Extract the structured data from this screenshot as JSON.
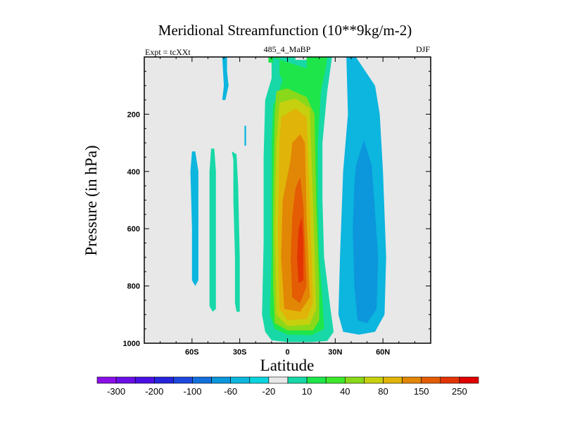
{
  "chart_data": {
    "type": "contour",
    "title": "Meridional Streamfunction (10**9kg/m-2)",
    "left_string": "Expt = tcXXt",
    "center_string": "485_4_MaBP",
    "right_string": "DJF",
    "xlabel": "Latitude",
    "ylabel": "Pressure (in hPa)",
    "xlim": [
      -90,
      90
    ],
    "ylim": [
      1000,
      0
    ],
    "x_ticks": [
      {
        "value": -60,
        "label": "60S"
      },
      {
        "value": -30,
        "label": "30S"
      },
      {
        "value": 0,
        "label": "0"
      },
      {
        "value": 30,
        "label": "30N"
      },
      {
        "value": 60,
        "label": "60N"
      }
    ],
    "y_ticks": [
      {
        "value": 200,
        "label": "200"
      },
      {
        "value": 400,
        "label": "400"
      },
      {
        "value": 600,
        "label": "600"
      },
      {
        "value": 800,
        "label": "800"
      },
      {
        "value": 1000,
        "label": "1000"
      }
    ],
    "colorbar": {
      "colors": [
        "#8a0ee8",
        "#6a0ee6",
        "#4a10e4",
        "#2624dc",
        "#1c48dc",
        "#1470dc",
        "#0c96dc",
        "#0cb6de",
        "#0ad4de",
        "#e8e8e8",
        "#18d8a8",
        "#1ee64a",
        "#3ee82a",
        "#8ad81a",
        "#c6d00e",
        "#e0b408",
        "#e28606",
        "#e45c04",
        "#e43402",
        "#e00000"
      ],
      "tick_labels": [
        "-300",
        "-200",
        "-100",
        "-60",
        "-20",
        "10",
        "40",
        "80",
        "150",
        "250"
      ]
    },
    "contours": [
      {
        "level": 10,
        "color": "#18d8a8",
        "polygons": [
          [
            [
              -90,
              1000
            ],
            [
              -90,
              1000
            ]
          ],
          [
            [
              -16,
              0
            ],
            [
              -10,
              0
            ],
            [
              -10,
              75
            ],
            [
              -14,
              150
            ],
            [
              -15,
              350
            ],
            [
              -15,
              650
            ],
            [
              -16,
              900
            ],
            [
              -14,
              960
            ],
            [
              -10,
              990
            ],
            [
              0,
              996
            ],
            [
              15,
              996
            ],
            [
              25,
              992
            ],
            [
              29,
              960
            ],
            [
              27,
              880
            ],
            [
              23,
              700
            ],
            [
              22,
              500
            ],
            [
              22,
              300
            ],
            [
              25,
              120
            ],
            [
              27,
              40
            ],
            [
              28,
              0
            ],
            [
              12,
              0
            ],
            [
              12,
              10
            ],
            [
              5,
              10
            ],
            [
              5,
              0
            ],
            [
              -16,
              0
            ]
          ],
          [
            [
              -35,
              330
            ],
            [
              -34,
              360
            ],
            [
              -34,
              500
            ],
            [
              -33,
              700
            ],
            [
              -33,
              860
            ],
            [
              -32,
              890
            ],
            [
              -30,
              890
            ],
            [
              -30,
              700
            ],
            [
              -31,
              450
            ],
            [
              -32,
              340
            ],
            [
              -35,
              330
            ]
          ],
          [
            [
              -20,
              430
            ],
            [
              -20,
              430
            ]
          ]
        ]
      },
      {
        "level": 40,
        "color": "#1ee64a",
        "polygons": [
          [
            [
              -10,
              0
            ],
            [
              -5,
              0
            ],
            [
              -5,
              60
            ],
            [
              -3,
              80
            ],
            [
              -6,
              130
            ],
            [
              -9,
              170
            ],
            [
              -10,
              300
            ],
            [
              -10,
              700
            ],
            [
              -11,
              900
            ],
            [
              -8,
              950
            ],
            [
              0,
              970
            ],
            [
              15,
              972
            ],
            [
              23,
              950
            ],
            [
              22,
              850
            ],
            [
              20,
              700
            ],
            [
              19,
              500
            ],
            [
              19,
              300
            ],
            [
              21,
              120
            ],
            [
              24,
              40
            ],
            [
              25,
              0
            ],
            [
              12,
              0
            ],
            [
              12,
              20
            ],
            [
              12,
              40
            ],
            [
              -10,
              0
            ]
          ]
        ]
      },
      {
        "level": 80,
        "color": "#8ad81a",
        "polygons": [
          [
            [
              -7,
              120
            ],
            [
              0,
              110
            ],
            [
              12,
              140
            ],
            [
              17,
              200
            ],
            [
              18,
              500
            ],
            [
              20,
              800
            ],
            [
              20,
              920
            ],
            [
              16,
              955
            ],
            [
              0,
              955
            ],
            [
              -8,
              930
            ],
            [
              -9,
              800
            ],
            [
              -9,
              500
            ],
            [
              -8,
              200
            ],
            [
              -7,
              120
            ]
          ]
        ]
      },
      {
        "level": 150,
        "color": "#c6d00e",
        "polygons": [
          [
            [
              -5,
              160
            ],
            [
              5,
              145
            ],
            [
              14,
              180
            ],
            [
              16,
              500
            ],
            [
              18,
              880
            ],
            [
              14,
              935
            ],
            [
              0,
              940
            ],
            [
              -7,
              900
            ],
            [
              -8,
              600
            ],
            [
              -7,
              300
            ],
            [
              -5,
              160
            ]
          ]
        ]
      },
      {
        "level": 200,
        "color": "#e0b408",
        "polygons": [
          [
            [
              -4,
              210
            ],
            [
              5,
              180
            ],
            [
              12,
              210
            ],
            [
              14,
              500
            ],
            [
              16,
              860
            ],
            [
              12,
              915
            ],
            [
              0,
              920
            ],
            [
              -5,
              880
            ],
            [
              -6,
              600
            ],
            [
              -5,
              300
            ],
            [
              -4,
              210
            ]
          ]
        ]
      },
      {
        "level": 250,
        "color": "#e28606",
        "polygons": [
          [
            [
              3,
              300
            ],
            [
              8,
              270
            ],
            [
              11,
              300
            ],
            [
              12,
              550
            ],
            [
              14,
              840
            ],
            [
              8,
              890
            ],
            [
              -2,
              880
            ],
            [
              -4,
              700
            ],
            [
              -3,
              500
            ],
            [
              2,
              360
            ],
            [
              3,
              300
            ]
          ]
        ]
      },
      {
        "level": 300,
        "color": "#e45c04",
        "polygons": [
          [
            [
              5,
              460
            ],
            [
              8,
              420
            ],
            [
              10,
              520
            ],
            [
              12,
              800
            ],
            [
              8,
              860
            ],
            [
              3,
              840
            ],
            [
              2,
              700
            ],
            [
              3,
              560
            ],
            [
              5,
              460
            ]
          ]
        ]
      },
      {
        "level": 350,
        "color": "#e43402",
        "polygons": [
          [
            [
              7,
              600
            ],
            [
              9,
              560
            ],
            [
              10,
              640
            ],
            [
              10,
              780
            ],
            [
              7,
              790
            ],
            [
              6,
              700
            ],
            [
              7,
              600
            ]
          ]
        ]
      },
      {
        "level": 40,
        "color": "#1ee64a",
        "polygons": [
          [
            [
              -12,
              0
            ],
            [
              -9,
              0
            ],
            [
              -9,
              20
            ],
            [
              -12,
              20
            ],
            [
              -12,
              0
            ]
          ]
        ]
      },
      {
        "level": -20,
        "color": "#0cb6de",
        "polygons": [
          [
            [
              37,
              0
            ],
            [
              43,
              0
            ],
            [
              55,
              100
            ],
            [
              58,
              200
            ],
            [
              60,
              400
            ],
            [
              62,
              700
            ],
            [
              61,
              900
            ],
            [
              55,
              960
            ],
            [
              45,
              970
            ],
            [
              35,
              960
            ],
            [
              32,
              900
            ],
            [
              33,
              700
            ],
            [
              35,
              400
            ],
            [
              38,
              200
            ],
            [
              37,
              0
            ]
          ],
          [
            [
              -60,
              330
            ],
            [
              -58,
              330
            ],
            [
              -56,
              400
            ],
            [
              -56,
              600
            ],
            [
              -56,
              780
            ],
            [
              -58,
              800
            ],
            [
              -60,
              780
            ],
            [
              -60,
              600
            ],
            [
              -61,
              400
            ],
            [
              -60,
              330
            ]
          ],
          [
            [
              -41,
              0
            ],
            [
              -38,
              0
            ],
            [
              -38,
              50
            ],
            [
              -37,
              100
            ],
            [
              -39,
              150
            ],
            [
              -41,
              150
            ],
            [
              -40,
              100
            ],
            [
              -41,
              0
            ]
          ],
          [
            [
              -27,
              240
            ],
            [
              -26,
              240
            ],
            [
              -26,
              310
            ],
            [
              -27,
              310
            ],
            [
              -27,
              240
            ]
          ]
        ]
      },
      {
        "level": -60,
        "color": "#0c96dc",
        "polygons": [
          [
            [
              43,
              380
            ],
            [
              48,
              290
            ],
            [
              53,
              380
            ],
            [
              57,
              700
            ],
            [
              56,
              880
            ],
            [
              50,
              930
            ],
            [
              44,
              920
            ],
            [
              42,
              800
            ],
            [
              41,
              600
            ],
            [
              42,
              450
            ],
            [
              43,
              380
            ]
          ]
        ]
      },
      {
        "level": 10,
        "color": "#18d8a8",
        "polygons": [
          [
            [
              -48,
              320
            ],
            [
              -46,
              320
            ],
            [
              -45,
              400
            ],
            [
              -45,
              700
            ],
            [
              -45,
              880
            ],
            [
              -47,
              890
            ],
            [
              -49,
              870
            ],
            [
              -49,
              600
            ],
            [
              -49,
              400
            ],
            [
              -48,
              320
            ]
          ]
        ]
      }
    ]
  }
}
